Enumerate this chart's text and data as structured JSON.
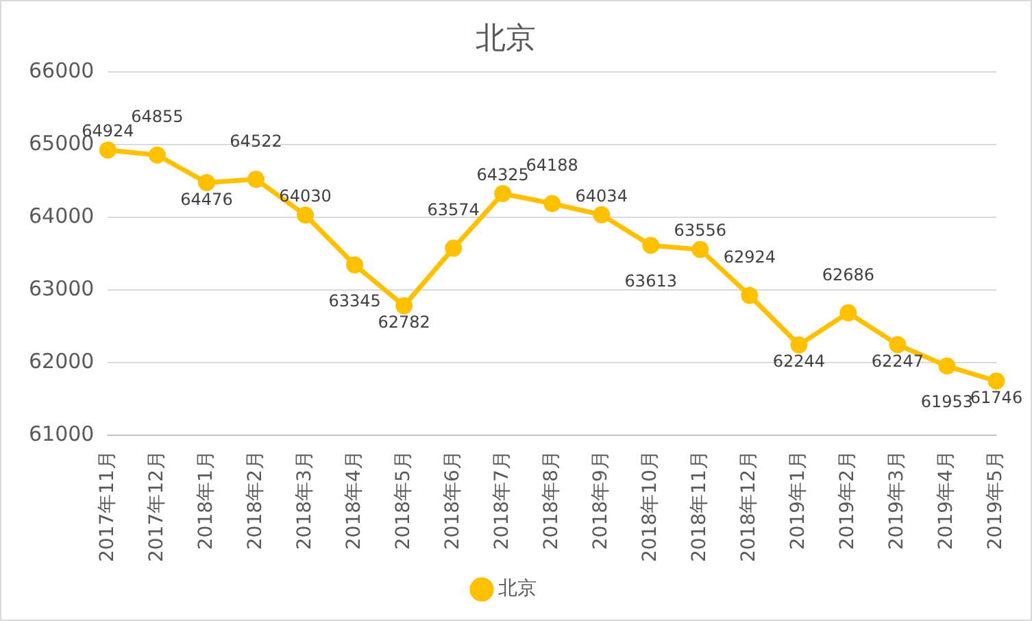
{
  "chart_data": {
    "type": "line",
    "title": "北京",
    "categories": [
      "2017年11月",
      "2017年12月",
      "2018年1月",
      "2018年2月",
      "2018年3月",
      "2018年4月",
      "2018年5月",
      "2018年6月",
      "2018年7月",
      "2018年8月",
      "2018年9月",
      "2018年10月",
      "2018年11月",
      "2018年12月",
      "2019年1月",
      "2019年2月",
      "2019年3月",
      "2019年4月",
      "2019年5月"
    ],
    "series": [
      {
        "name": "北京",
        "color": "#ffc000",
        "values": [
          64924,
          64855,
          64476,
          64522,
          64030,
          63345,
          62782,
          63574,
          64325,
          64188,
          64034,
          63613,
          63556,
          62924,
          62244,
          62686,
          62247,
          61953,
          61746
        ]
      }
    ],
    "ylim": [
      61000,
      66000
    ],
    "yticks": [
      61000,
      62000,
      63000,
      64000,
      65000,
      66000
    ],
    "grid": "y",
    "legend": "bottom",
    "marker": "circle",
    "line_style": "solid",
    "data_labels": true
  }
}
